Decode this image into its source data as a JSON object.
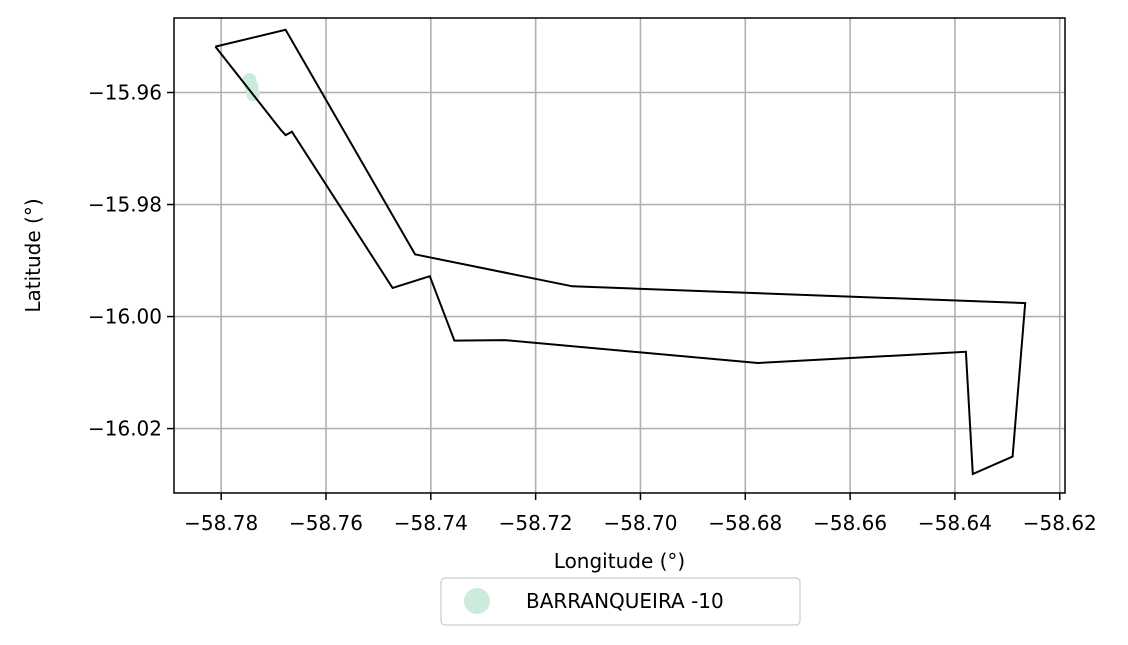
{
  "chart_data": {
    "type": "line",
    "title": "",
    "xlabel": "Longitude (°)",
    "ylabel": "Latitude (°)",
    "xlim": [
      -58.789,
      -58.619
    ],
    "ylim": [
      -16.0315,
      -15.9467
    ],
    "x_ticks": [
      -58.78,
      -58.76,
      -58.74,
      -58.72,
      -58.7,
      -58.68,
      -58.66,
      -58.64,
      -58.62
    ],
    "y_ticks": [
      -15.96,
      -15.98,
      -16.0,
      -16.02
    ],
    "x_tick_labels": [
      "−58.78",
      "−58.76",
      "−58.74",
      "−58.72",
      "−58.70",
      "−58.68",
      "−58.66",
      "−58.64",
      "−58.62"
    ],
    "y_tick_labels": [
      "−15.96",
      "−15.98",
      "−16.00",
      "−16.02"
    ],
    "grid": true,
    "legend_position": "bottom-center, below axes",
    "series": [
      {
        "name": "BARRANQUEIRA -10",
        "kind": "point",
        "color": "#cdebdc",
        "points": [
          [
            -58.7746,
            -15.9578
          ],
          [
            -58.7742,
            -15.959
          ],
          [
            -58.7739,
            -15.9603
          ]
        ]
      },
      {
        "kind": "boundary",
        "color": "#000000",
        "points": [
          [
            -58.7811,
            -15.9518
          ],
          [
            -58.7677,
            -15.9488
          ],
          [
            -58.743,
            -15.9889
          ],
          [
            -58.713,
            -15.9946
          ],
          [
            -58.6266,
            -15.9976
          ],
          [
            -58.629,
            -16.025
          ],
          [
            -58.6366,
            -16.0281
          ],
          [
            -58.6379,
            -16.0063
          ],
          [
            -58.6776,
            -16.0083
          ],
          [
            -58.7259,
            -16.0042
          ],
          [
            -58.7355,
            -16.0043
          ],
          [
            -58.7402,
            -15.9928
          ],
          [
            -58.7473,
            -15.9949
          ],
          [
            -58.7665,
            -15.967
          ],
          [
            -58.7677,
            -15.9676
          ],
          [
            -58.7686,
            -15.9667
          ],
          [
            -58.7811,
            -15.9518
          ]
        ]
      }
    ]
  }
}
